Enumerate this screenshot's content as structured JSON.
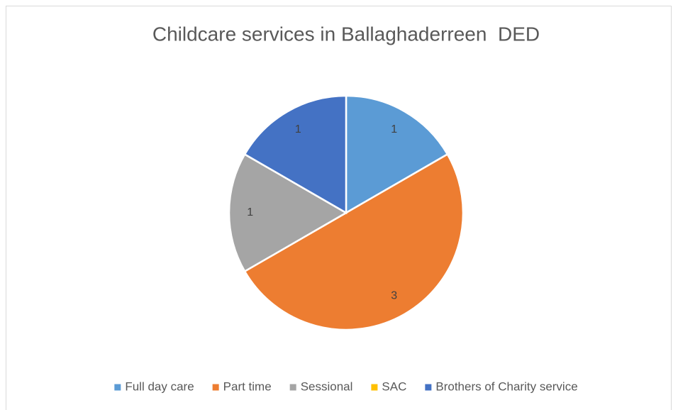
{
  "chart_data": {
    "type": "pie",
    "title": "Childcare services in Ballaghaderreen  DED",
    "categories": [
      "Full day care",
      "Part time",
      "Sessional",
      "SAC",
      "Brothers of Charity service"
    ],
    "values": [
      1,
      3,
      1,
      0,
      1
    ],
    "colors": [
      "#5b9bd5",
      "#ed7d31",
      "#a5a5a5",
      "#ffc000",
      "#4472c4"
    ],
    "legend": "bottom"
  }
}
